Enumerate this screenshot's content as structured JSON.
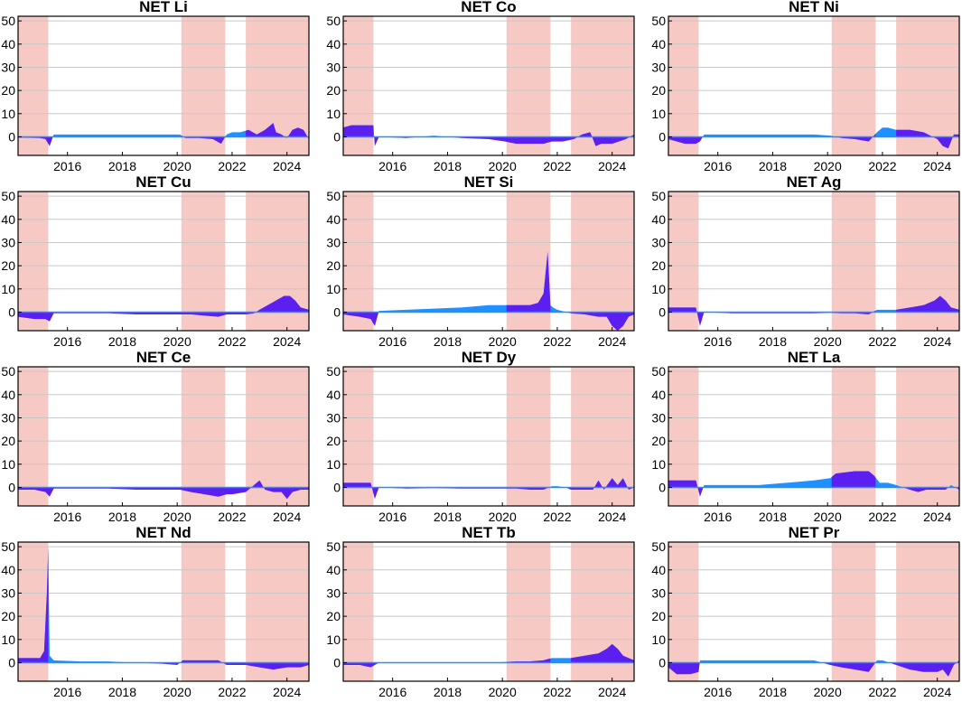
{
  "colors": {
    "recession": "#f7c9c4",
    "positive": "#1e90ff",
    "negative": "#5b1ff0",
    "grid": "#c8c8c8"
  },
  "yticks": [
    0,
    10,
    20,
    30,
    40,
    50
  ],
  "xticks": [
    2016,
    2018,
    2020,
    2022,
    2024
  ],
  "chart_data": [
    {
      "type": "area",
      "title": "NET Li",
      "xlim": [
        2014.2,
        2024.8
      ],
      "ylim": [
        -8,
        52
      ],
      "shaded": [
        [
          2014.2,
          2015.3
        ],
        [
          2020.15,
          2021.75
        ],
        [
          2022.5,
          2024.8
        ]
      ],
      "series": [
        {
          "x": [
            2014.2,
            2015.0,
            2015.2,
            2015.35,
            2015.5,
            2016.5,
            2017.5,
            2018.5,
            2019.5,
            2020.1,
            2020.3,
            2020.8,
            2021.3,
            2021.6,
            2021.8,
            2022.0,
            2022.3,
            2022.6,
            2022.9,
            2023.2,
            2023.5,
            2023.6,
            2023.8,
            2024.0,
            2024.2,
            2024.4,
            2024.6,
            2024.8
          ],
          "y": [
            -0.3,
            -0.5,
            -1,
            -4,
            1,
            1,
            1,
            1,
            1,
            1,
            -0.5,
            -0.5,
            -1,
            -3,
            1,
            2,
            2,
            3,
            1,
            3,
            6,
            2,
            1,
            -0.5,
            3,
            4,
            3,
            -1
          ]
        }
      ]
    },
    {
      "type": "area",
      "title": "NET Co",
      "xlim": [
        2014.2,
        2024.8
      ],
      "ylim": [
        -8,
        52
      ],
      "shaded": [
        [
          2014.2,
          2015.3
        ],
        [
          2020.15,
          2021.75
        ],
        [
          2022.5,
          2024.8
        ]
      ],
      "series": [
        {
          "x": [
            2014.2,
            2014.5,
            2015.0,
            2015.3,
            2015.35,
            2015.5,
            2016.5,
            2017.5,
            2018.5,
            2019.5,
            2020.1,
            2020.5,
            2021.0,
            2021.5,
            2021.8,
            2022.2,
            2022.6,
            2022.9,
            2023.2,
            2023.4,
            2023.6,
            2024.0,
            2024.5,
            2024.8
          ],
          "y": [
            4,
            5,
            5,
            5,
            -4,
            0,
            -0.5,
            0.5,
            -0.5,
            -1,
            -2,
            -3,
            -3,
            -3,
            -2,
            -2,
            -1,
            1,
            2,
            -4,
            -3,
            -3,
            -1,
            1
          ]
        }
      ]
    },
    {
      "type": "area",
      "title": "NET Ni",
      "xlim": [
        2014.2,
        2024.8
      ],
      "ylim": [
        -8,
        52
      ],
      "shaded": [
        [
          2014.2,
          2015.3
        ],
        [
          2020.15,
          2021.75
        ],
        [
          2022.5,
          2024.8
        ]
      ],
      "series": [
        {
          "x": [
            2014.2,
            2014.8,
            2015.2,
            2015.35,
            2015.5,
            2016.5,
            2017.5,
            2018.5,
            2019.5,
            2020.1,
            2020.5,
            2021.0,
            2021.5,
            2021.8,
            2022.0,
            2022.2,
            2022.5,
            2023.0,
            2023.5,
            2024.0,
            2024.2,
            2024.4,
            2024.6,
            2024.8
          ],
          "y": [
            -1,
            -3,
            -3,
            -2,
            1,
            1,
            1,
            1,
            1,
            0.5,
            -0.5,
            -1,
            -2,
            2,
            4,
            4,
            3,
            3,
            2,
            -1,
            -4,
            -5,
            1,
            1
          ]
        }
      ]
    },
    {
      "type": "area",
      "title": "NET Cu",
      "xlim": [
        2014.2,
        2024.8
      ],
      "ylim": [
        -8,
        52
      ],
      "shaded": [
        [
          2014.2,
          2015.3
        ],
        [
          2020.15,
          2021.75
        ],
        [
          2022.5,
          2024.8
        ]
      ],
      "series": [
        {
          "x": [
            2014.2,
            2014.8,
            2015.2,
            2015.35,
            2015.5,
            2016.5,
            2017.5,
            2018.5,
            2019.5,
            2020.1,
            2020.5,
            2021.0,
            2021.5,
            2021.8,
            2022.0,
            2022.5,
            2022.8,
            2023.0,
            2023.3,
            2023.6,
            2023.9,
            2024.1,
            2024.3,
            2024.5,
            2024.8
          ],
          "y": [
            -2,
            -3,
            -3,
            -4,
            -0.5,
            -0.5,
            -0.5,
            -1,
            -1,
            -1,
            -1,
            -1.5,
            -2,
            -1,
            -1,
            -1,
            -0.5,
            1,
            3,
            5,
            7,
            7,
            5,
            2,
            1
          ]
        }
      ]
    },
    {
      "type": "area",
      "title": "NET Si",
      "xlim": [
        2014.2,
        2024.8
      ],
      "ylim": [
        -8,
        52
      ],
      "shaded": [
        [
          2014.2,
          2015.3
        ],
        [
          2020.15,
          2021.75
        ],
        [
          2022.5,
          2024.8
        ]
      ],
      "series": [
        {
          "x": [
            2014.2,
            2014.8,
            2015.2,
            2015.35,
            2015.5,
            2016.5,
            2017.5,
            2018.5,
            2019.5,
            2020.1,
            2020.5,
            2021.0,
            2021.3,
            2021.5,
            2021.65,
            2021.75,
            2021.85,
            2022.0,
            2022.5,
            2023.0,
            2023.5,
            2023.8,
            2024.0,
            2024.2,
            2024.4,
            2024.6,
            2024.8
          ],
          "y": [
            -1,
            -2,
            -3,
            -6,
            0.5,
            1,
            1.5,
            2,
            3,
            3,
            3,
            3,
            4,
            8,
            26,
            3,
            2,
            1,
            -0.5,
            -1,
            -2,
            -2,
            -6,
            -8,
            -6,
            -2,
            -1
          ]
        }
      ]
    },
    {
      "type": "area",
      "title": "NET Ag",
      "xlim": [
        2014.2,
        2024.8
      ],
      "ylim": [
        -8,
        52
      ],
      "shaded": [
        [
          2014.2,
          2015.3
        ],
        [
          2020.15,
          2021.75
        ],
        [
          2022.5,
          2024.8
        ]
      ],
      "series": [
        {
          "x": [
            2014.2,
            2014.8,
            2015.2,
            2015.35,
            2015.5,
            2016.5,
            2017.5,
            2018.5,
            2019.5,
            2020.1,
            2020.5,
            2021.0,
            2021.5,
            2021.8,
            2022.0,
            2022.5,
            2023.0,
            2023.5,
            2023.9,
            2024.1,
            2024.3,
            2024.5,
            2024.8
          ],
          "y": [
            2,
            2,
            2,
            -6,
            0,
            -0.5,
            -0.5,
            -0.5,
            -0.5,
            -0.3,
            -0.5,
            -0.5,
            -1,
            1,
            1,
            1,
            2,
            3,
            5,
            7,
            5,
            2,
            1
          ]
        }
      ]
    },
    {
      "type": "area",
      "title": "NET Ce",
      "xlim": [
        2014.2,
        2024.8
      ],
      "ylim": [
        -8,
        52
      ],
      "shaded": [
        [
          2014.2,
          2015.3
        ],
        [
          2020.15,
          2021.75
        ],
        [
          2022.5,
          2024.8
        ]
      ],
      "series": [
        {
          "x": [
            2014.2,
            2014.8,
            2015.2,
            2015.35,
            2015.5,
            2016.5,
            2017.5,
            2018.5,
            2019.5,
            2020.1,
            2020.5,
            2021.0,
            2021.5,
            2021.8,
            2022.0,
            2022.5,
            2022.8,
            2023.0,
            2023.2,
            2023.5,
            2023.8,
            2024.0,
            2024.2,
            2024.5,
            2024.8
          ],
          "y": [
            -1,
            -1,
            -2,
            -4,
            -0.5,
            -0.5,
            -0.5,
            -1,
            -1,
            -1,
            -2,
            -3,
            -4,
            -3,
            -3,
            -2,
            1,
            3,
            -1,
            -2,
            -2,
            -5,
            -2,
            -1,
            -1
          ]
        }
      ]
    },
    {
      "type": "area",
      "title": "NET Dy",
      "xlim": [
        2014.2,
        2024.8
      ],
      "ylim": [
        -8,
        52
      ],
      "shaded": [
        [
          2014.2,
          2015.3
        ],
        [
          2020.15,
          2021.75
        ],
        [
          2022.5,
          2024.8
        ]
      ],
      "series": [
        {
          "x": [
            2014.2,
            2014.8,
            2015.2,
            2015.35,
            2015.5,
            2016.5,
            2017.5,
            2018.5,
            2019.5,
            2020.1,
            2020.5,
            2021.0,
            2021.5,
            2021.8,
            2022.0,
            2022.3,
            2022.5,
            2023.0,
            2023.3,
            2023.5,
            2023.7,
            2024.0,
            2024.2,
            2024.4,
            2024.6,
            2024.8
          ],
          "y": [
            2,
            2,
            2,
            -5,
            0,
            -0.5,
            -0.3,
            -0.5,
            -0.5,
            -0.5,
            -0.5,
            -1,
            -1,
            0.5,
            0.5,
            0,
            -1,
            -1,
            -1,
            3,
            -1,
            4,
            1,
            4,
            -1,
            0
          ]
        }
      ]
    },
    {
      "type": "area",
      "title": "NET La",
      "xlim": [
        2014.2,
        2024.8
      ],
      "ylim": [
        -8,
        52
      ],
      "shaded": [
        [
          2014.2,
          2015.3
        ],
        [
          2020.15,
          2021.75
        ],
        [
          2022.5,
          2024.8
        ]
      ],
      "series": [
        {
          "x": [
            2014.2,
            2014.8,
            2015.2,
            2015.35,
            2015.5,
            2016.5,
            2017.5,
            2018.5,
            2019.5,
            2020.1,
            2020.3,
            2021.0,
            2021.5,
            2021.7,
            2021.9,
            2022.2,
            2022.5,
            2023.0,
            2023.3,
            2023.6,
            2024.0,
            2024.3,
            2024.5,
            2024.8
          ],
          "y": [
            3,
            3,
            3,
            -4,
            1,
            1,
            1,
            2,
            3,
            4,
            6,
            7,
            7,
            5,
            2,
            2,
            1,
            -1,
            -2,
            -1,
            -1,
            -1,
            1,
            -1
          ]
        }
      ]
    },
    {
      "type": "area",
      "title": "NET Nd",
      "xlim": [
        2014.2,
        2024.8
      ],
      "ylim": [
        -8,
        52
      ],
      "shaded": [
        [
          2014.2,
          2015.3
        ],
        [
          2020.15,
          2021.75
        ],
        [
          2022.5,
          2024.8
        ]
      ],
      "series": [
        {
          "x": [
            2014.2,
            2014.8,
            2015.0,
            2015.15,
            2015.25,
            2015.3,
            2015.35,
            2015.5,
            2016.5,
            2017.5,
            2018.5,
            2019.5,
            2020.0,
            2020.2,
            2020.5,
            2021.0,
            2021.5,
            2021.8,
            2022.0,
            2022.5,
            2023.0,
            2023.5,
            2024.0,
            2024.5,
            2024.8
          ],
          "y": [
            2,
            2,
            2,
            5,
            30,
            50,
            3,
            1,
            0.5,
            0.5,
            0,
            -0.5,
            -1,
            1,
            1,
            1,
            1,
            -1,
            -1,
            -1,
            -2,
            -3,
            -2,
            -2,
            -1
          ]
        }
      ]
    },
    {
      "type": "area",
      "title": "NET Tb",
      "xlim": [
        2014.2,
        2024.8
      ],
      "ylim": [
        -8,
        52
      ],
      "shaded": [
        [
          2014.2,
          2015.3
        ],
        [
          2020.15,
          2021.75
        ],
        [
          2022.5,
          2024.8
        ]
      ],
      "series": [
        {
          "x": [
            2014.2,
            2014.8,
            2015.2,
            2015.35,
            2015.5,
            2016.5,
            2017.5,
            2018.5,
            2019.5,
            2020.1,
            2020.5,
            2021.0,
            2021.5,
            2021.8,
            2022.0,
            2022.5,
            2023.0,
            2023.5,
            2023.8,
            2024.0,
            2024.2,
            2024.4,
            2024.6,
            2024.8
          ],
          "y": [
            -1,
            -1,
            -2,
            -1,
            0,
            0,
            0,
            0,
            0,
            0.3,
            0.5,
            0.5,
            1,
            2,
            2,
            2,
            3,
            4,
            6,
            8,
            6,
            3,
            2,
            1
          ]
        }
      ]
    },
    {
      "type": "area",
      "title": "NET Pr",
      "xlim": [
        2014.2,
        2024.8
      ],
      "ylim": [
        -8,
        52
      ],
      "shaded": [
        [
          2014.2,
          2015.3
        ],
        [
          2020.15,
          2021.75
        ],
        [
          2022.5,
          2024.8
        ]
      ],
      "series": [
        {
          "x": [
            2014.2,
            2014.5,
            2015.0,
            2015.3,
            2015.35,
            2015.5,
            2016.5,
            2017.5,
            2018.5,
            2019.5,
            2020.1,
            2020.5,
            2021.0,
            2021.5,
            2021.8,
            2022.0,
            2022.5,
            2023.0,
            2023.5,
            2024.0,
            2024.2,
            2024.4,
            2024.6,
            2024.8
          ],
          "y": [
            -2,
            -5,
            -5,
            -4,
            1,
            1,
            1,
            1,
            1,
            1,
            -1,
            -2,
            -3,
            -4,
            1,
            1,
            -1,
            -3,
            -4,
            -4,
            -3,
            -6,
            -1,
            1
          ]
        }
      ]
    }
  ]
}
